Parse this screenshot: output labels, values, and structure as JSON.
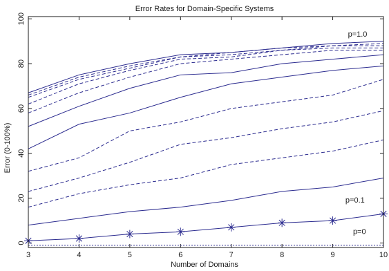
{
  "chart_data": {
    "type": "line",
    "title": "Error Rates for Domain-Specific Systems",
    "xlabel": "Number of Domains",
    "ylabel": "Error (0-100%)",
    "xlim": [
      3,
      10
    ],
    "ylim": [
      -2,
      101
    ],
    "x_ticks": [
      3,
      4,
      5,
      6,
      7,
      8,
      9,
      10
    ],
    "y_ticks": [
      0,
      20,
      40,
      60,
      80,
      100
    ],
    "grid": false,
    "line_color": "#2b2b8f",
    "x": [
      3,
      4,
      5,
      6,
      7,
      8,
      9,
      10
    ],
    "series": [
      {
        "values": [
          67,
          75,
          80,
          84,
          85,
          87,
          89,
          90
        ],
        "style": "solid"
      },
      {
        "values": [
          66,
          74,
          79,
          83,
          85,
          87,
          88,
          89
        ],
        "style": "dashed"
      },
      {
        "values": [
          65,
          73,
          78,
          83,
          84,
          86,
          88,
          88
        ],
        "style": "dashed"
      },
      {
        "values": [
          62,
          71,
          77,
          82,
          83,
          86,
          87,
          87
        ],
        "style": "dashed"
      },
      {
        "values": [
          58,
          67,
          74,
          80,
          82,
          84,
          86,
          86
        ],
        "style": "dashed"
      },
      {
        "values": [
          52,
          61,
          69,
          75,
          76,
          80,
          82,
          84
        ],
        "style": "solid"
      },
      {
        "values": [
          42,
          53,
          58,
          65,
          71,
          74,
          77,
          79
        ],
        "style": "solid"
      },
      {
        "values": [
          32,
          38,
          50,
          54,
          60,
          63,
          66,
          73
        ],
        "style": "dashed"
      },
      {
        "values": [
          23,
          29,
          36,
          44,
          47,
          51,
          54,
          59
        ],
        "style": "dashed"
      },
      {
        "values": [
          16,
          22,
          26,
          29,
          35,
          38,
          41,
          46
        ],
        "style": "dashed"
      },
      {
        "values": [
          8,
          11,
          14,
          16,
          19,
          23,
          25,
          29
        ],
        "style": "solid"
      },
      {
        "values": [
          1,
          2,
          4,
          5,
          7,
          9,
          10,
          13
        ],
        "style": "solid",
        "marker": "asterisk"
      },
      {
        "values": [
          -1,
          -1,
          -1,
          -1,
          -1,
          -1,
          -1,
          -1
        ],
        "style": "dotted"
      }
    ],
    "annotations": [
      {
        "text": "p=1.0",
        "x": 9.3,
        "y": 92
      },
      {
        "text": "p=0.1",
        "x": 9.25,
        "y": 18
      },
      {
        "text": "p=0",
        "x": 9.4,
        "y": 4
      }
    ]
  }
}
